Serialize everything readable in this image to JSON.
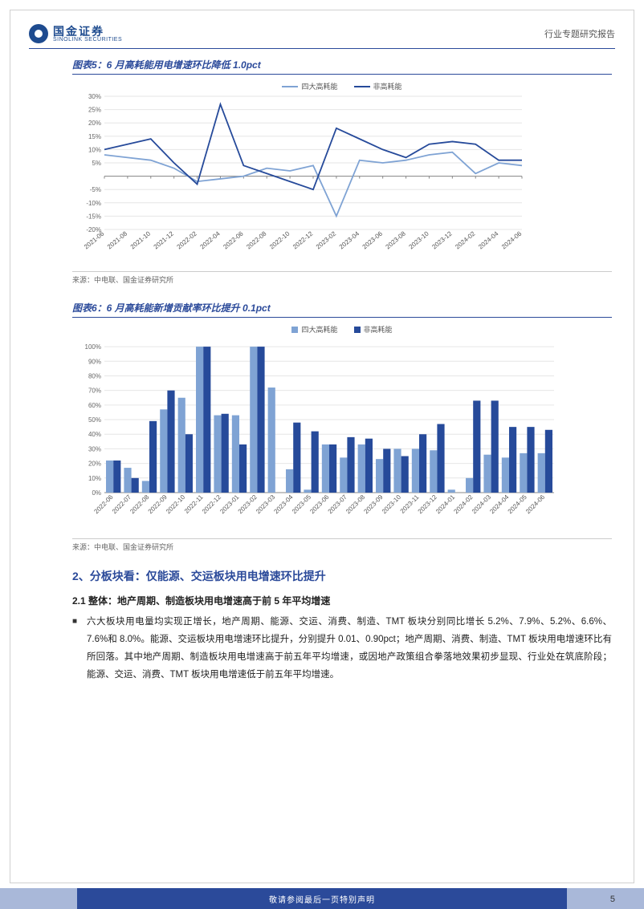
{
  "header": {
    "logo_cn": "国金证券",
    "logo_en": "SINOLINK SECURITIES",
    "doc_type": "行业专题研究报告"
  },
  "chart5": {
    "title": "图表5：6 月高耗能用电增速环比降低 1.0pct",
    "type": "line",
    "legend": [
      "四大高耗能",
      "非高耗能"
    ],
    "colors": [
      "#7fa3d4",
      "#264a9a"
    ],
    "x_labels": [
      "2021-06",
      "2021-08",
      "2021-10",
      "2021-12",
      "2022-02",
      "2022-04",
      "2022-06",
      "2022-08",
      "2022-10",
      "2022-12",
      "2023-02",
      "2023-04",
      "2023-06",
      "2023-08",
      "2023-10",
      "2023-12",
      "2024-02",
      "2024-04",
      "2024-06"
    ],
    "y_ticks": [
      -20,
      -15,
      -10,
      -5,
      0,
      5,
      10,
      15,
      20,
      25,
      30
    ],
    "y_tick_labels": [
      "-20%",
      "-15%",
      "-10%",
      "-5%",
      "",
      "5%",
      "10%",
      "15%",
      "20%",
      "25%",
      "30%"
    ],
    "ylim": [
      -20,
      30
    ],
    "series1": [
      8,
      7,
      6,
      3,
      -2,
      -1,
      0,
      3,
      2,
      4,
      -15,
      6,
      5,
      6,
      8,
      9,
      1,
      5,
      4
    ],
    "series2": [
      10,
      12,
      14,
      5,
      -3,
      27,
      4,
      1,
      -2,
      -5,
      18,
      14,
      10,
      7,
      12,
      13,
      12,
      6,
      6
    ],
    "grid_color": "#e6e6e6",
    "axis_color": "#888",
    "label_fontsize": 8,
    "source": "来源：中电联、国金证券研究所"
  },
  "chart6": {
    "title": "图表6：6 月高耗能新增贡献率环比提升 0.1pct",
    "type": "bar",
    "legend": [
      "四大高耗能",
      "非高耗能"
    ],
    "colors": [
      "#7fa3d4",
      "#264a9a"
    ],
    "x_labels": [
      "2022-06",
      "2022-07",
      "2022-08",
      "2022-09",
      "2022-10",
      "2022-11",
      "2022-12",
      "2023-01",
      "2023-02",
      "2023-03",
      "2023-04",
      "2023-05",
      "2023-06",
      "2023-07",
      "2023-08",
      "2023-09",
      "2023-10",
      "2023-11",
      "2023-12",
      "2024-01",
      "2024-02",
      "2024-03",
      "2024-04",
      "2024-05",
      "2024-06"
    ],
    "y_ticks": [
      0,
      10,
      20,
      30,
      40,
      50,
      60,
      70,
      80,
      90,
      100
    ],
    "y_tick_labels": [
      "0%",
      "10%",
      "20%",
      "30%",
      "40%",
      "50%",
      "60%",
      "70%",
      "80%",
      "90%",
      "100%"
    ],
    "ylim": [
      0,
      105
    ],
    "series1": [
      22,
      17,
      8,
      57,
      65,
      100,
      53,
      53,
      100,
      72,
      16,
      2,
      33,
      24,
      33,
      23,
      30,
      30,
      29,
      2,
      10,
      26,
      24,
      27,
      27
    ],
    "series2": [
      22,
      10,
      49,
      70,
      40,
      100,
      54,
      33,
      100,
      0,
      48,
      42,
      33,
      38,
      37,
      30,
      25,
      40,
      47,
      0,
      63,
      63,
      45,
      45,
      43
    ],
    "grid_color": "#e6e6e6",
    "axis_color": "#888",
    "label_fontsize": 8,
    "bar_group_gap": 2,
    "source": "来源：中电联、国金证券研究所"
  },
  "section": {
    "h2": "2、分板块看：仅能源、交运板块用电增速环比提升",
    "h3": "2.1 整体：地产周期、制造板块用电增速高于前 5 年平均增速",
    "body": "六大板块用电量均实现正增长，地产周期、能源、交运、消费、制造、TMT 板块分别同比增长 5.2%、7.9%、5.2%、6.6%、7.6%和 8.0%。能源、交运板块用电增速环比提升，分别提升 0.01、0.90pct；地产周期、消费、制造、TMT 板块用电增速环比有所回落。其中地产周期、制造板块用电增速高于前五年平均增速，或因地产政策组合拳落地效果初步显现、行业处在筑底阶段；能源、交运、消费、TMT 板块用电增速低于前五年平均增速。"
  },
  "footer": {
    "text": "敬请参阅最后一页特别声明",
    "page": "5"
  }
}
